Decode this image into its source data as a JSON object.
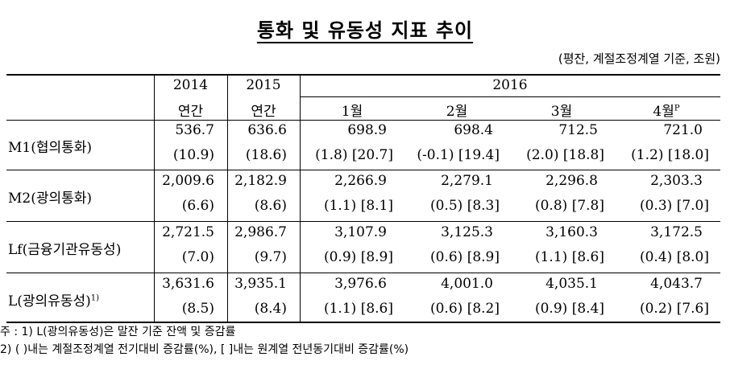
{
  "title": "통화 및 유동성 지표 추이",
  "unit": "(평잔, 계절조정계열 기준, 조원)",
  "header": {
    "years": [
      "2014",
      "2015",
      "2016"
    ],
    "subs": [
      "연간",
      "연간",
      "1월",
      "2월",
      "3월",
      "4월"
    ],
    "sup_p": "P"
  },
  "rows": [
    {
      "label": "M1(협의통화)",
      "label_sup": "",
      "values": [
        "536.7",
        "636.6",
        "698.9",
        "698.4",
        "712.5",
        "721.0"
      ],
      "changes": [
        "(10.9)",
        "(18.6)",
        "(1.8) [20.7]",
        "(-0.1) [19.4]",
        "(2.0) [18.8]",
        "(1.2) [18.0]"
      ]
    },
    {
      "label": "M2(광의통화)",
      "label_sup": "",
      "values": [
        "2,009.6",
        "2,182.9",
        "2,266.9",
        "2,279.1",
        "2,296.8",
        "2,303.3"
      ],
      "changes": [
        "(6.6)",
        "(8.6)",
        "(1.1) [8.1]",
        "(0.5) [8.3]",
        "(0.8) [7.8]",
        "(0.3) [7.0]"
      ]
    },
    {
      "label": "Lf(금융기관유동성)",
      "label_sup": "",
      "values": [
        "2,721.5",
        "2,986.7",
        "3,107.9",
        "3,125.3",
        "3,160.3",
        "3,172.5"
      ],
      "changes": [
        "(7.0)",
        "(9.7)",
        "(0.9) [8.9]",
        "(0.6) [8.9]",
        "(1.1) [8.6]",
        "(0.4) [8.0]"
      ]
    },
    {
      "label": "L(광의유동성)",
      "label_sup": "1)",
      "values": [
        "3,631.6",
        "3,935.1",
        "3,976.6",
        "4,001.0",
        "4,035.1",
        "4,043.7"
      ],
      "changes": [
        "(8.5)",
        "(8.4)",
        "(1.1) [8.6]",
        "(0.6) [8.2]",
        "(0.9) [8.4]",
        "(0.2) [7.6]"
      ]
    }
  ],
  "notes": [
    "주 :  1) L(광의유동성)은 말잔 기준 잔액 및 증감률",
    "         2) (     )내는 계절조정계열 전기대비 증감률(%), [     ]내는 원계열 전년동기대비 증감률(%)"
  ]
}
